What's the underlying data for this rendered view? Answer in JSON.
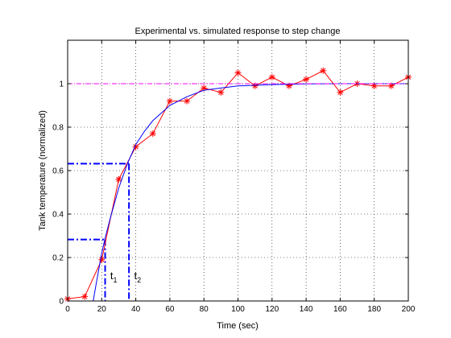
{
  "chart_data": {
    "type": "line",
    "title": "Experimental vs. simulated response to step change",
    "xlabel": "Time (sec)",
    "ylabel": "Tank temperature (normalized)",
    "xlim": [
      0,
      200
    ],
    "ylim": [
      0,
      1.2
    ],
    "xticks": [
      0,
      20,
      40,
      60,
      80,
      100,
      120,
      140,
      160,
      180,
      200
    ],
    "yticks": [
      0,
      0.2,
      0.4,
      0.6,
      0.8,
      1
    ],
    "grid": true,
    "series": [
      {
        "style": "experimental",
        "color": "#ff0000",
        "marker": "star",
        "x": [
          0,
          10,
          20,
          30,
          40,
          50,
          60,
          70,
          80,
          90,
          100,
          110,
          120,
          130,
          140,
          150,
          160,
          170,
          180,
          190,
          200
        ],
        "y": [
          0.01,
          0.02,
          0.19,
          0.56,
          0.71,
          0.77,
          0.92,
          0.92,
          0.98,
          0.96,
          1.05,
          0.99,
          1.03,
          0.99,
          1.02,
          1.06,
          0.96,
          1.0,
          0.99,
          0.99,
          1.03
        ]
      },
      {
        "style": "simulated",
        "color": "#0000ff",
        "model": "first-order with dead time",
        "x": [
          0,
          15,
          17,
          20,
          22,
          25,
          30,
          35,
          40,
          45,
          50,
          60,
          70,
          80,
          90,
          100,
          120,
          140,
          160,
          180,
          200
        ],
        "y": [
          0,
          0,
          0.09,
          0.22,
          0.29,
          0.38,
          0.52,
          0.63,
          0.72,
          0.78,
          0.83,
          0.9,
          0.94,
          0.97,
          0.98,
          0.99,
          0.996,
          0.999,
          1.0,
          1.0,
          1.0
        ]
      },
      {
        "style": "reference",
        "color": "#ff00ff",
        "dash": "dashdot",
        "x": [
          0,
          200
        ],
        "y": [
          1,
          1
        ]
      }
    ],
    "construction_lines": [
      {
        "t": 22,
        "level": 0.283
      },
      {
        "t": 36,
        "level": 0.632
      }
    ],
    "annotations": [
      {
        "base": "t",
        "sub": "1",
        "x": 25,
        "y": 0.1
      },
      {
        "base": "t",
        "sub": "2",
        "x": 39,
        "y": 0.1
      }
    ]
  }
}
